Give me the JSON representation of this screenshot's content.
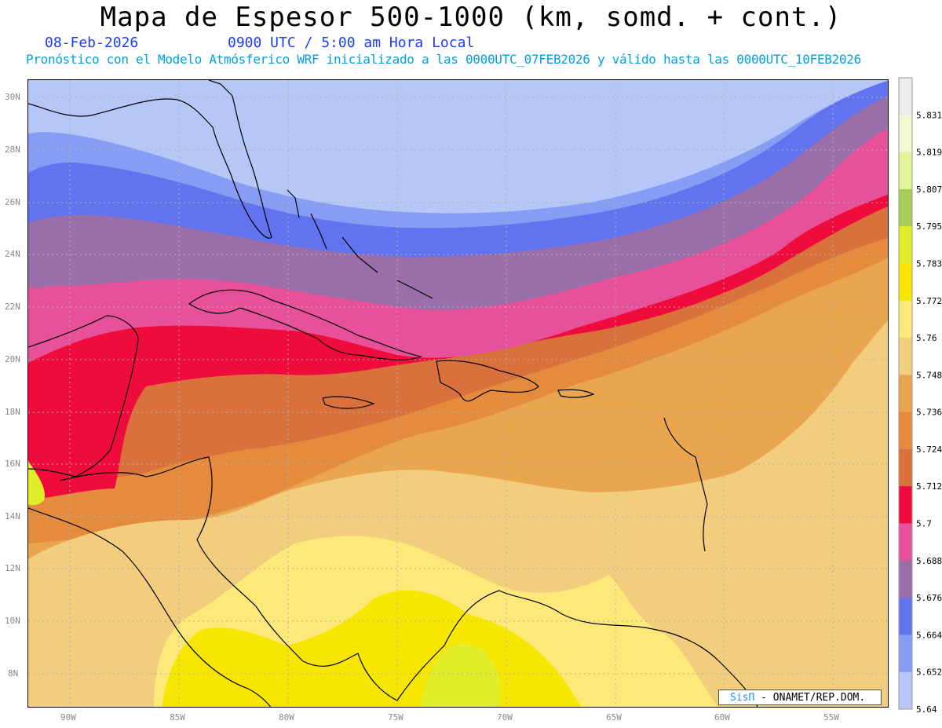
{
  "header": {
    "title": "Mapa de Espesor 500-1000 (km, somd. + cont.)",
    "date": "08-Feb-2026",
    "time": "0900 UTC / 5:00 am Hora Local",
    "model_info": "Pronóstico con el Modelo Atmósferico WRF inicializado a las 0000UTC_07FEB2026 y válido hasta las  0000UTC_10FEB2026"
  },
  "map": {
    "lat_labels": [
      "30N",
      "28N",
      "26N",
      "24N",
      "22N",
      "20N",
      "18N",
      "16N",
      "14N",
      "12N",
      "10N",
      "8N"
    ],
    "lon_labels": [
      "90W",
      "85W",
      "80W",
      "75W",
      "70W",
      "65W",
      "60W",
      "55W"
    ],
    "grid": "dotted"
  },
  "colorbar": {
    "labels": [
      "5.831",
      "5.819",
      "5.807",
      "5.795",
      "5.783",
      "5.772",
      "5.76",
      "5.748",
      "5.736",
      "5.724",
      "5.712",
      "5.7",
      "5.688",
      "5.676",
      "5.664",
      "5.652",
      "5.64"
    ],
    "colors": [
      "#ebebeb",
      "#f2f8d2",
      "#e3f59a",
      "#a8cc5a",
      "#e2ed2a",
      "#f7e600",
      "#fde97a",
      "#f2cd7e",
      "#eaa54f",
      "#e48b3e",
      "#d9713c",
      "#ef0c3c",
      "#e7519a",
      "#9a6ea8",
      "#6173ef",
      "#879df3",
      "#b6c6f6"
    ]
  },
  "credit": {
    "sis": "SisΠ",
    "org": " - ONAMET/REP.DOM."
  }
}
